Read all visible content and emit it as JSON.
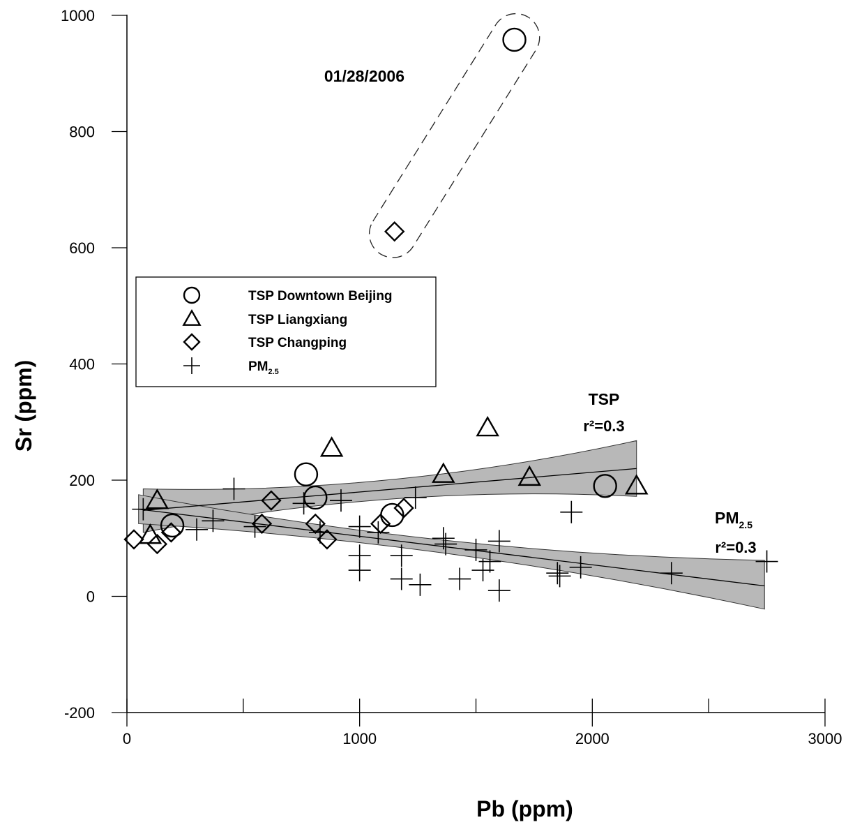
{
  "chart_data": {
    "type": "scatter",
    "xlabel": "Pb (ppm)",
    "ylabel": "Sr (ppm)",
    "xlim": [
      0,
      3000
    ],
    "ylim": [
      -200,
      1000
    ],
    "x_ticks": [
      "0",
      "1000",
      "2000",
      "3000"
    ],
    "y_ticks": [
      "-200",
      "0",
      "200",
      "400",
      "600",
      "800",
      "1000"
    ],
    "grid": false,
    "legend_position": "left",
    "series": [
      {
        "name": "TSP Downtown Beijing",
        "marker": "circle",
        "points": [
          [
            195,
            122
          ],
          [
            770,
            210
          ],
          [
            810,
            170
          ],
          [
            1140,
            140
          ],
          [
            2055,
            190
          ],
          [
            1665,
            958
          ]
        ]
      },
      {
        "name": "TSP Liangxiang",
        "marker": "triangle",
        "points": [
          [
            130,
            165
          ],
          [
            100,
            105
          ],
          [
            880,
            255
          ],
          [
            1360,
            210
          ],
          [
            1550,
            290
          ],
          [
            1730,
            205
          ],
          [
            2190,
            190
          ]
        ]
      },
      {
        "name": "TSP Changping",
        "marker": "diamond",
        "points": [
          [
            30,
            98
          ],
          [
            130,
            90
          ],
          [
            190,
            110
          ],
          [
            580,
            125
          ],
          [
            620,
            165
          ],
          [
            810,
            125
          ],
          [
            860,
            98
          ],
          [
            1090,
            125
          ],
          [
            1190,
            152
          ],
          [
            1150,
            628
          ]
        ]
      },
      {
        "name": "PM",
        "name_sub": "2.5",
        "marker": "plus",
        "points": [
          [
            70,
            150
          ],
          [
            300,
            115
          ],
          [
            370,
            130
          ],
          [
            460,
            185
          ],
          [
            550,
            120
          ],
          [
            760,
            160
          ],
          [
            830,
            110
          ],
          [
            920,
            165
          ],
          [
            1000,
            120
          ],
          [
            1000,
            70
          ],
          [
            1000,
            45
          ],
          [
            1080,
            110
          ],
          [
            1180,
            70
          ],
          [
            1180,
            30
          ],
          [
            1240,
            170
          ],
          [
            1260,
            20
          ],
          [
            1360,
            100
          ],
          [
            1370,
            90
          ],
          [
            1430,
            30
          ],
          [
            1500,
            80
          ],
          [
            1530,
            45
          ],
          [
            1560,
            60
          ],
          [
            1600,
            10
          ],
          [
            1600,
            95
          ],
          [
            1850,
            40
          ],
          [
            1860,
            35
          ],
          [
            1910,
            145
          ],
          [
            1950,
            50
          ],
          [
            2340,
            40
          ],
          [
            2750,
            60
          ]
        ]
      }
    ],
    "fits": [
      {
        "name": "TSP",
        "r2": "r²=0.3",
        "x_range": [
          70,
          2190
        ],
        "line": [
          148,
          220
        ],
        "band_upper": [
          185,
          268
        ],
        "band_lower": [
          110,
          172
        ]
      },
      {
        "name": "PM",
        "name_sub": "2.5",
        "r2": "r²=0.3",
        "x_range": [
          50,
          2740
        ],
        "line": [
          150,
          18
        ],
        "band_upper": [
          175,
          62
        ],
        "band_lower": [
          125,
          -22
        ]
      }
    ],
    "annotations": [
      {
        "text": "01/28/2006",
        "x": 1320,
        "y": 850
      }
    ]
  }
}
